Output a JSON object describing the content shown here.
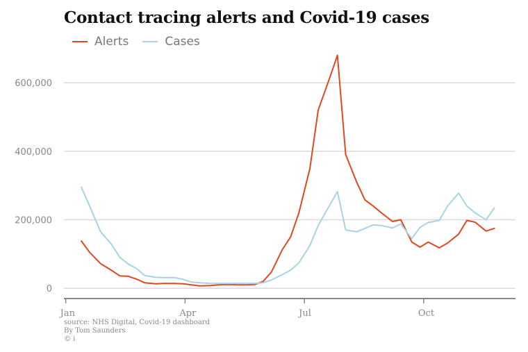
{
  "title": "Contact tracing alerts and Covid-19 cases",
  "colors": {
    "alerts": "#e0471f",
    "cases": "#a7d3e6",
    "grid": "#d9d9d9",
    "axis": "#888888",
    "tick_text": "#888888"
  },
  "footer": {
    "source": "source: NHS Digital, Covid-19 dashboard",
    "author": "By Tom Saunders",
    "copyright": "© i"
  },
  "chart_data": {
    "type": "line",
    "title": "Contact tracing alerts and Covid-19 cases",
    "xlabel": "",
    "ylabel": "",
    "x_ticks": [
      {
        "week": 0,
        "label": "Jan"
      },
      {
        "week": 13,
        "label": "Apr"
      },
      {
        "week": 26,
        "label": "Jul"
      },
      {
        "week": 39,
        "label": "Oct"
      }
    ],
    "y_ticks": [
      {
        "value": 0,
        "label": "0"
      },
      {
        "value": 200000,
        "label": "200,000"
      },
      {
        "value": 400000,
        "label": "400,000"
      },
      {
        "value": 600000,
        "label": "600,000"
      }
    ],
    "xlim": [
      -0.2,
      49
    ],
    "ylim": [
      -30000,
      720000
    ],
    "grid": true,
    "legend": "top-left",
    "x": [
      1.7,
      2.6,
      3.8,
      5,
      5.9,
      6.8,
      7.7,
      8.6,
      9.8,
      10.7,
      11.9,
      12.8,
      13.7,
      14.6,
      15.8,
      16.7,
      17.6,
      18.8,
      19.7,
      20.6,
      21.5,
      22.4,
      23.6,
      24.5,
      25.4,
      26.6,
      27.5,
      28.7,
      29.6,
      30.5,
      31.7,
      32.6,
      33.5,
      34.4,
      35.6,
      36.5,
      37.7,
      38.6,
      39.5,
      40.7,
      41.6,
      42.8,
      43.7,
      44.6,
      45.8,
      46.7
    ],
    "series": [
      {
        "name": "Alerts",
        "color": "#e0471f",
        "values": [
          138000,
          105000,
          72000,
          52000,
          36000,
          35000,
          27000,
          16000,
          13000,
          14000,
          14000,
          13000,
          10000,
          7000,
          8000,
          10000,
          11000,
          10000,
          10000,
          11000,
          20000,
          47000,
          113000,
          150000,
          220000,
          350000,
          520000,
          610000,
          680000,
          390000,
          310000,
          258000,
          240000,
          220000,
          195000,
          200000,
          135000,
          120000,
          135000,
          118000,
          132000,
          158000,
          198000,
          193000,
          167000,
          175000
        ]
      },
      {
        "name": "Cases",
        "color": "#a7d3e6",
        "values": [
          295000,
          240000,
          165000,
          128000,
          90000,
          71000,
          58000,
          37000,
          32000,
          31000,
          31000,
          26000,
          18000,
          16000,
          14000,
          14000,
          14000,
          14000,
          14000,
          14000,
          16000,
          24000,
          40000,
          53000,
          74000,
          125000,
          183000,
          240000,
          282000,
          170000,
          165000,
          175000,
          185000,
          183000,
          176000,
          188000,
          145000,
          178000,
          192000,
          198000,
          240000,
          278000,
          240000,
          220000,
          200000,
          235000
        ]
      }
    ]
  }
}
